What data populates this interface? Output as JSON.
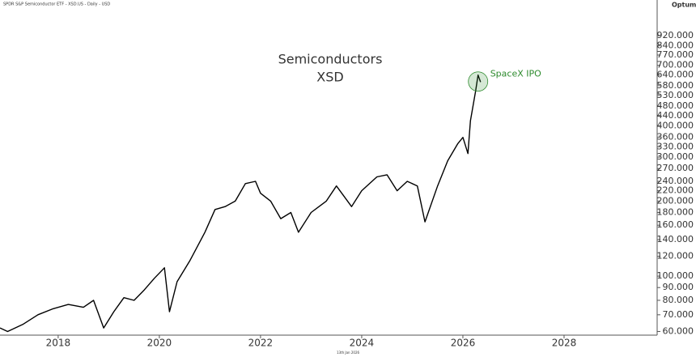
{
  "chart_data": {
    "type": "line",
    "header": "SPDR S&P Semiconductor ETF - XSD.US - Daily - USD",
    "brand": "Optuma",
    "footer": "13th Jan 2026",
    "title": "Semiconductors",
    "subtitle": "XSD",
    "annotations": [
      {
        "text": "SpaceX IPO"
      }
    ],
    "color": "#000000",
    "annotation_color": "#2e8b2e",
    "log_y": true,
    "grid": false,
    "x": [
      2016.85,
      2017.0,
      2017.3,
      2017.6,
      2017.9,
      2018.2,
      2018.5,
      2018.7,
      2018.9,
      2019.1,
      2019.3,
      2019.5,
      2019.7,
      2019.9,
      2020.1,
      2020.2,
      2020.35,
      2020.6,
      2020.9,
      2021.1,
      2021.3,
      2021.5,
      2021.7,
      2021.9,
      2022.0,
      2022.2,
      2022.4,
      2022.6,
      2022.75,
      2023.0,
      2023.3,
      2023.5,
      2023.8,
      2024.0,
      2024.3,
      2024.5,
      2024.7,
      2024.9,
      2025.1,
      2025.25,
      2025.5,
      2025.7,
      2025.9,
      2026.0,
      2026.1,
      2026.15,
      2026.25,
      2026.3,
      2026.35
    ],
    "values": [
      62,
      60,
      64,
      70,
      74,
      77,
      75,
      80,
      62,
      72,
      82,
      80,
      88,
      98,
      108,
      72,
      95,
      115,
      150,
      185,
      190,
      200,
      235,
      240,
      215,
      200,
      170,
      180,
      150,
      180,
      200,
      230,
      190,
      220,
      250,
      255,
      220,
      240,
      230,
      165,
      230,
      290,
      340,
      360,
      310,
      420,
      550,
      640,
      600
    ],
    "xlim": [
      2016.85,
      2029.84
    ],
    "xticks": [
      2018,
      2020,
      2022,
      2024,
      2026,
      2028
    ],
    "ylim": [
      58,
      1000
    ],
    "yticks": [
      {
        "value": 60,
        "label": "60.000"
      },
      {
        "value": 70,
        "label": "70.000"
      },
      {
        "value": 80,
        "label": "80.000"
      },
      {
        "value": 90,
        "label": "90.000"
      },
      {
        "value": 100,
        "label": "100.000"
      },
      {
        "value": 120,
        "label": "120.000"
      },
      {
        "value": 140,
        "label": "140.000"
      },
      {
        "value": 160,
        "label": "160.000"
      },
      {
        "value": 180,
        "label": "180.000"
      },
      {
        "value": 200,
        "label": "200.000"
      },
      {
        "value": 220,
        "label": "220.000"
      },
      {
        "value": 240,
        "label": "240.000"
      },
      {
        "value": 270,
        "label": "270.000"
      },
      {
        "value": 300,
        "label": "300.000"
      },
      {
        "value": 330,
        "label": "330.000"
      },
      {
        "value": 360,
        "label": "360.000"
      },
      {
        "value": 400,
        "label": "400.000"
      },
      {
        "value": 440,
        "label": "440.000"
      },
      {
        "value": 480,
        "label": "480.000"
      },
      {
        "value": 530,
        "label": "530.000"
      },
      {
        "value": 580,
        "label": "580.000"
      },
      {
        "value": 640,
        "label": "640.000"
      },
      {
        "value": 700,
        "label": "700.000"
      },
      {
        "value": 770,
        "label": "770.000"
      },
      {
        "value": 840,
        "label": "840.000"
      },
      {
        "value": 920,
        "label": "920.000"
      }
    ]
  }
}
